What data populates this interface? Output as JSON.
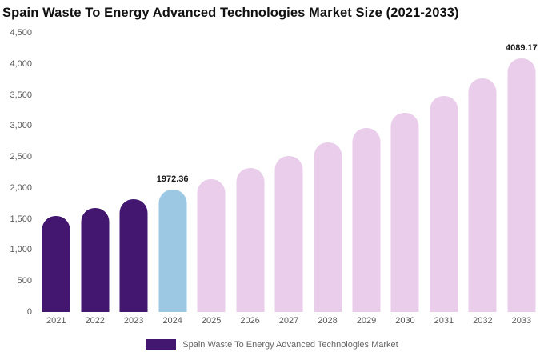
{
  "title": "Spain Waste To Energy Advanced Technologies Market Size (2021-2033)",
  "legend": {
    "label": "Spain Waste To Energy Advanced Technologies Market",
    "swatch_color": "#431770"
  },
  "colors": {
    "historical_bar": "#431770",
    "current_year_bar": "#9CC8E4",
    "forecast_bar": "#E9CDEA",
    "axis_text": "#595959",
    "value_label_text": "#1A1A1A"
  },
  "chart_data": {
    "type": "bar",
    "title": "Spain Waste To Energy Advanced Technologies Market Size (2021-2033)",
    "xlabel": "",
    "ylabel": "",
    "categories": [
      "2021",
      "2022",
      "2023",
      "2024",
      "2025",
      "2026",
      "2027",
      "2028",
      "2029",
      "2030",
      "2031",
      "2032",
      "2033"
    ],
    "values": [
      1550,
      1680,
      1820,
      1972.36,
      2140,
      2320,
      2510,
      2730,
      2960,
      3210,
      3480,
      3770,
      4089.17
    ],
    "bar_colors": [
      "#431770",
      "#431770",
      "#431770",
      "#9CC8E4",
      "#E9CDEA",
      "#E9CDEA",
      "#E9CDEA",
      "#E9CDEA",
      "#E9CDEA",
      "#E9CDEA",
      "#E9CDEA",
      "#E9CDEA",
      "#E9CDEA"
    ],
    "point_labels": [
      "",
      "",
      "",
      "1972.36",
      "",
      "",
      "",
      "",
      "",
      "",
      "",
      "",
      "4089.17"
    ],
    "ylim": [
      0,
      4500
    ],
    "y_ticks": [
      "0",
      "500",
      "1,000",
      "1,500",
      "2,000",
      "2,500",
      "3,000",
      "3,500",
      "4,000",
      "4,500"
    ],
    "grid": false,
    "legend_position": "bottom",
    "legend_entries": [
      "Spain Waste To Energy Advanced Technologies Market"
    ]
  }
}
